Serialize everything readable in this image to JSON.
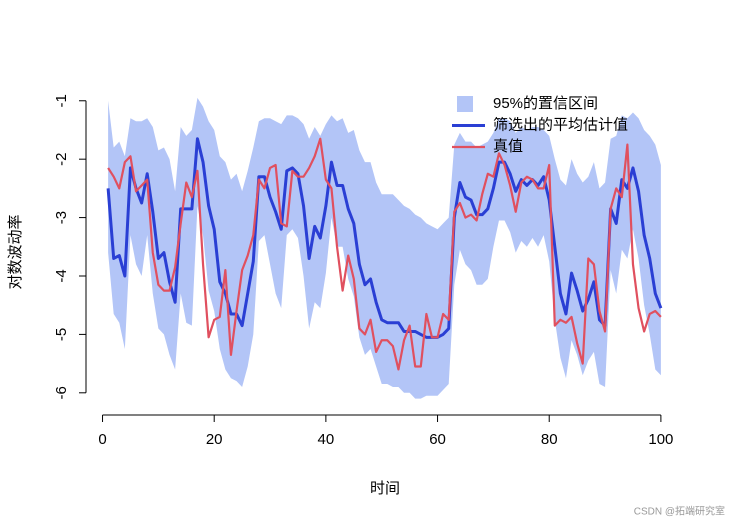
{
  "chart_data": {
    "type": "line",
    "xlabel": "时间",
    "ylabel": "对数波动率",
    "watermark": "CSDN @拓端研究室",
    "legend": "topright",
    "xlim": [
      -2.96,
      103.96
    ],
    "ylim": [
      -6.38,
      -0.73
    ],
    "xticks": [
      0,
      20,
      40,
      60,
      80,
      100
    ],
    "yticks": [
      -1,
      -2,
      -3,
      -4,
      -5,
      -6
    ],
    "x": [
      1,
      2,
      3,
      4,
      5,
      6,
      7,
      8,
      9,
      10,
      11,
      12,
      13,
      14,
      15,
      16,
      17,
      18,
      19,
      20,
      21,
      22,
      23,
      24,
      25,
      26,
      27,
      28,
      29,
      30,
      31,
      32,
      33,
      34,
      35,
      36,
      37,
      38,
      39,
      40,
      41,
      42,
      43,
      44,
      45,
      46,
      47,
      48,
      49,
      50,
      51,
      52,
      53,
      54,
      55,
      56,
      57,
      58,
      59,
      60,
      61,
      62,
      63,
      64,
      65,
      66,
      67,
      68,
      69,
      70,
      71,
      72,
      73,
      74,
      75,
      76,
      77,
      78,
      79,
      80,
      81,
      82,
      83,
      84,
      85,
      86,
      87,
      88,
      89,
      90,
      91,
      92,
      93,
      94,
      95,
      96,
      97,
      98,
      99,
      100
    ],
    "series": [
      {
        "name": "95%的置信区间",
        "color": "#b3c5f7",
        "type": "band",
        "upper": [
          -1.0,
          -1.8,
          -1.7,
          -1.95,
          -1.3,
          -1.35,
          -1.35,
          -1.3,
          -1.45,
          -1.85,
          -1.8,
          -2.0,
          -2.55,
          -1.45,
          -1.6,
          -1.5,
          -0.95,
          -1.1,
          -1.35,
          -1.5,
          -1.95,
          -2.05,
          -2.35,
          -2.25,
          -2.55,
          -2.2,
          -1.8,
          -1.35,
          -1.3,
          -1.3,
          -1.35,
          -1.4,
          -1.25,
          -1.25,
          -1.3,
          -1.4,
          -1.65,
          -1.45,
          -1.6,
          -1.4,
          -1.25,
          -1.35,
          -1.3,
          -1.55,
          -1.5,
          -1.85,
          -2.05,
          -2.05,
          -2.4,
          -2.6,
          -2.6,
          -2.6,
          -2.7,
          -2.8,
          -2.85,
          -2.95,
          -3.0,
          -3.1,
          -3.15,
          -3.2,
          -3.1,
          -3.0,
          -1.75,
          -1.55,
          -1.7,
          -1.7,
          -1.8,
          -1.75,
          -1.7,
          -1.55,
          -1.3,
          -1.3,
          -1.35,
          -1.55,
          -1.45,
          -1.5,
          -1.45,
          -1.45,
          -1.5,
          -1.6,
          -2.0,
          -2.35,
          -2.45,
          -2.0,
          -2.25,
          -2.4,
          -2.3,
          -2.05,
          -2.5,
          -2.4,
          -1.65,
          -1.6,
          -1.25,
          -1.3,
          -1.2,
          -1.3,
          -1.5,
          -1.6,
          -1.75,
          -2.1
        ],
        "lower": [
          -3.6,
          -4.65,
          -4.8,
          -5.25,
          -3.3,
          -3.8,
          -4.0,
          -3.3,
          -4.3,
          -4.9,
          -5.0,
          -5.35,
          -5.6,
          -4.3,
          -4.8,
          -4.85,
          -2.8,
          -3.3,
          -4.25,
          -4.6,
          -5.25,
          -5.6,
          -5.75,
          -5.8,
          -5.9,
          -5.55,
          -5.0,
          -3.4,
          -3.3,
          -3.8,
          -4.3,
          -4.55,
          -3.3,
          -3.2,
          -3.35,
          -4.0,
          -4.9,
          -4.45,
          -4.55,
          -3.95,
          -3.0,
          -3.5,
          -3.5,
          -4.05,
          -4.35,
          -5.05,
          -5.35,
          -5.25,
          -5.55,
          -5.85,
          -5.85,
          -5.9,
          -5.9,
          -6.0,
          -6.0,
          -6.1,
          -6.1,
          -6.05,
          -6.05,
          -6.05,
          -5.95,
          -5.85,
          -4.15,
          -3.55,
          -3.8,
          -3.9,
          -4.15,
          -4.15,
          -4.05,
          -3.5,
          -3.05,
          -3.05,
          -3.25,
          -3.6,
          -3.4,
          -3.5,
          -3.35,
          -3.5,
          -3.3,
          -3.75,
          -4.75,
          -5.4,
          -5.75,
          -5.1,
          -5.35,
          -5.7,
          -5.45,
          -5.3,
          -5.85,
          -5.9,
          -3.9,
          -4.3,
          -3.55,
          -3.7,
          -3.2,
          -3.7,
          -4.5,
          -5.0,
          -5.6,
          -5.7
        ]
      },
      {
        "name": "筛选出的平均估计值",
        "color": "#2a3fd4",
        "values": [
          -2.5,
          -3.7,
          -3.65,
          -4.0,
          -2.15,
          -2.5,
          -2.75,
          -2.25,
          -2.9,
          -3.7,
          -3.6,
          -4.1,
          -4.45,
          -2.85,
          -2.85,
          -2.85,
          -1.65,
          -2.05,
          -2.8,
          -3.2,
          -4.1,
          -4.3,
          -4.65,
          -4.65,
          -4.85,
          -4.3,
          -3.75,
          -2.3,
          -2.3,
          -2.65,
          -2.9,
          -3.2,
          -2.2,
          -2.15,
          -2.25,
          -2.8,
          -3.7,
          -3.15,
          -3.35,
          -2.8,
          -2.05,
          -2.45,
          -2.45,
          -2.85,
          -3.1,
          -3.8,
          -4.15,
          -4.05,
          -4.45,
          -4.75,
          -4.8,
          -4.8,
          -4.8,
          -4.95,
          -4.95,
          -4.95,
          -5.0,
          -5.05,
          -5.05,
          -5.05,
          -5.0,
          -4.9,
          -3.0,
          -2.4,
          -2.65,
          -2.7,
          -2.95,
          -2.95,
          -2.85,
          -2.5,
          -2.05,
          -2.05,
          -2.25,
          -2.55,
          -2.35,
          -2.45,
          -2.35,
          -2.45,
          -2.3,
          -2.7,
          -3.5,
          -4.3,
          -4.65,
          -3.95,
          -4.25,
          -4.6,
          -4.4,
          -4.1,
          -4.75,
          -4.85,
          -2.85,
          -3.1,
          -2.35,
          -2.5,
          -2.15,
          -2.55,
          -3.3,
          -3.7,
          -4.3,
          -4.55
        ]
      },
      {
        "name": "真值",
        "color": "#e0505f",
        "values": [
          -2.15,
          -2.3,
          -2.5,
          -2.05,
          -1.95,
          -2.55,
          -2.45,
          -2.35,
          -3.6,
          -4.15,
          -4.25,
          -4.25,
          -3.85,
          -3.1,
          -2.4,
          -2.65,
          -2.2,
          -3.8,
          -5.05,
          -4.75,
          -4.7,
          -3.9,
          -5.35,
          -4.6,
          -3.9,
          -3.65,
          -3.3,
          -2.35,
          -2.5,
          -2.15,
          -2.1,
          -3.1,
          -3.15,
          -2.2,
          -2.3,
          -2.3,
          -2.15,
          -1.95,
          -1.65,
          -2.35,
          -2.5,
          -3.5,
          -4.25,
          -3.65,
          -4.05,
          -4.9,
          -5.0,
          -4.75,
          -5.3,
          -5.1,
          -5.1,
          -5.2,
          -5.6,
          -5.1,
          -4.85,
          -5.55,
          -5.55,
          -4.65,
          -5.05,
          -5.05,
          -4.65,
          -4.75,
          -2.9,
          -2.75,
          -3.0,
          -2.95,
          -3.05,
          -2.6,
          -2.25,
          -2.3,
          -1.9,
          -2.1,
          -2.45,
          -2.9,
          -2.4,
          -2.3,
          -2.35,
          -2.5,
          -2.5,
          -2.1,
          -4.85,
          -4.75,
          -4.8,
          -4.7,
          -5.15,
          -5.5,
          -3.7,
          -3.8,
          -4.6,
          -4.95,
          -2.85,
          -2.5,
          -2.65,
          -1.75,
          -3.8,
          -4.55,
          -4.95,
          -4.65,
          -4.6,
          -4.7
        ]
      }
    ]
  }
}
